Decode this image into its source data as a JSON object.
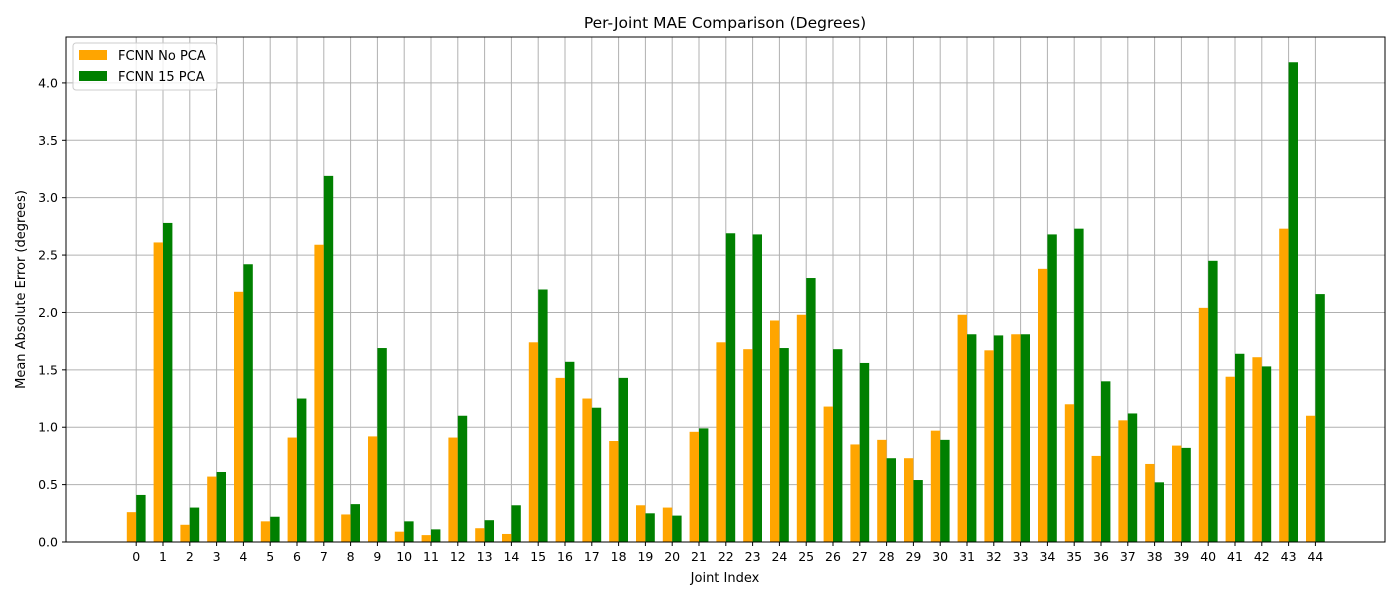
{
  "chart_data": {
    "type": "bar",
    "title": "Per-Joint MAE Comparison (Degrees)",
    "xlabel": "Joint Index",
    "ylabel": "Mean Absolute Error (degrees)",
    "ylim": [
      0,
      4.4
    ],
    "yticks": [
      "0.0",
      "0.5",
      "1.0",
      "1.5",
      "2.0",
      "2.5",
      "3.0",
      "3.5",
      "4.0"
    ],
    "grid": true,
    "legend_position": "upper-left",
    "categories": [
      "0",
      "1",
      "2",
      "3",
      "4",
      "5",
      "6",
      "7",
      "8",
      "9",
      "10",
      "11",
      "12",
      "13",
      "14",
      "15",
      "16",
      "17",
      "18",
      "19",
      "20",
      "21",
      "22",
      "23",
      "24",
      "25",
      "26",
      "27",
      "28",
      "29",
      "30",
      "31",
      "32",
      "33",
      "34",
      "35",
      "36",
      "37",
      "38",
      "39",
      "40",
      "41",
      "42",
      "43",
      "44"
    ],
    "series": [
      {
        "name": "FCNN No PCA",
        "color": "#FFA500",
        "values": [
          0.26,
          2.61,
          0.15,
          0.57,
          2.18,
          0.18,
          0.91,
          2.59,
          0.24,
          0.92,
          0.09,
          0.06,
          0.91,
          0.12,
          0.07,
          1.74,
          1.43,
          1.25,
          0.88,
          0.32,
          0.3,
          0.96,
          1.74,
          1.68,
          1.93,
          1.98,
          1.18,
          0.85,
          0.89,
          0.73,
          0.97,
          1.98,
          1.67,
          1.81,
          2.38,
          1.2,
          0.75,
          1.06,
          0.68,
          0.84,
          2.04,
          1.44,
          1.61,
          2.73,
          1.1
        ]
      },
      {
        "name": "FCNN 15 PCA",
        "color": "#008000",
        "values": [
          0.41,
          2.78,
          0.3,
          0.61,
          2.42,
          0.22,
          1.25,
          3.19,
          0.33,
          1.69,
          0.18,
          0.11,
          1.1,
          0.19,
          0.32,
          2.2,
          1.57,
          1.17,
          1.43,
          0.25,
          0.23,
          0.99,
          2.69,
          2.68,
          1.69,
          2.3,
          1.68,
          1.56,
          0.73,
          0.54,
          0.89,
          1.81,
          1.8,
          1.81,
          2.68,
          2.73,
          1.4,
          1.12,
          0.52,
          0.82,
          2.45,
          1.64,
          1.53,
          4.18,
          2.16
        ]
      }
    ]
  }
}
